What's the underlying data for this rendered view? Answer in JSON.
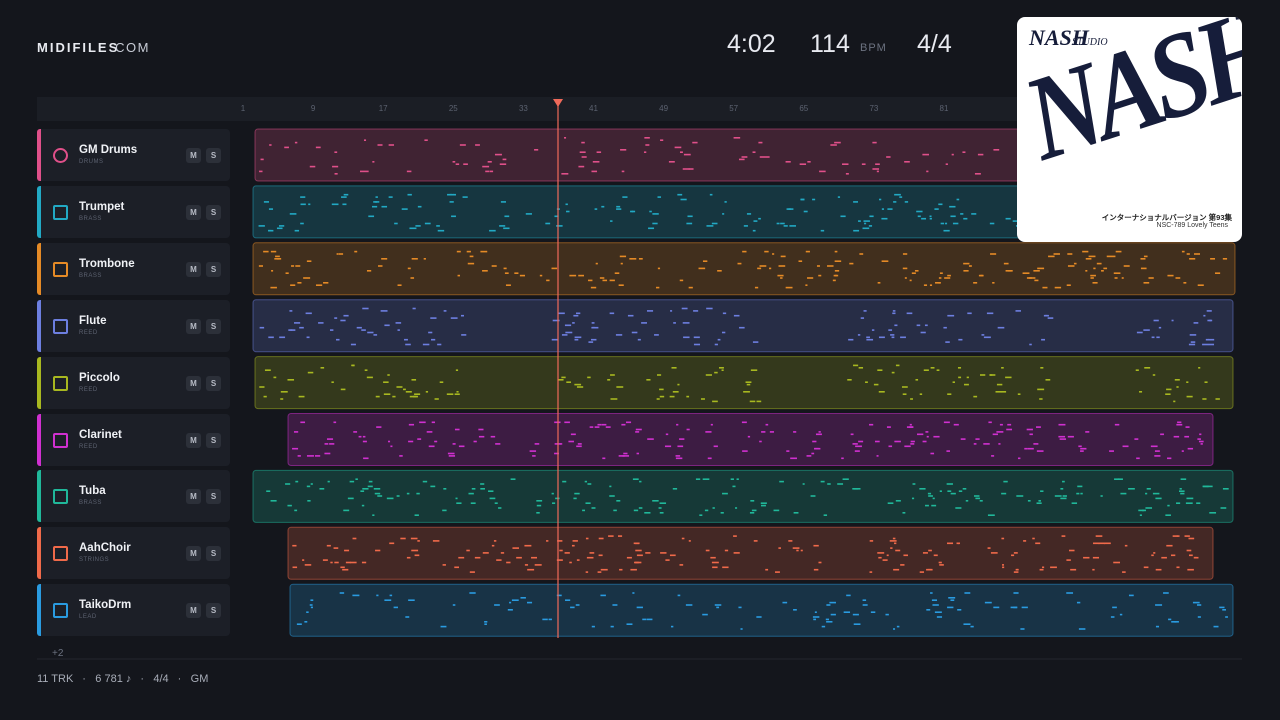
{
  "header": {
    "brand": "MIDIFILES",
    "brand_suffix": ".COM",
    "duration": "4:02",
    "tempo": "114",
    "tempo_unit": "BPM",
    "meter": "4/4"
  },
  "ruler": [
    1,
    9,
    17,
    25,
    33,
    41,
    49,
    57,
    65,
    73,
    81
  ],
  "tracks": [
    {
      "name": "GM Drums",
      "category": "DRUMS",
      "color": "#e0508a",
      "mute": "M",
      "solo": "S"
    },
    {
      "name": "Trumpet",
      "category": "BRASS",
      "color": "#22a9c4",
      "mute": "M",
      "solo": "S"
    },
    {
      "name": "Trombone",
      "category": "BRASS",
      "color": "#e58a26",
      "mute": "M",
      "solo": "S"
    },
    {
      "name": "Flute",
      "category": "REED",
      "color": "#6d7fe0",
      "mute": "M",
      "solo": "S"
    },
    {
      "name": "Piccolo",
      "category": "REED",
      "color": "#a8b820",
      "mute": "M",
      "solo": "S"
    },
    {
      "name": "Clarinet",
      "category": "REED",
      "color": "#d030d0",
      "mute": "M",
      "solo": "S"
    },
    {
      "name": "Tuba",
      "category": "BRASS",
      "color": "#20b89a",
      "mute": "M",
      "solo": "S"
    },
    {
      "name": "AahChoir",
      "category": "STRINGS",
      "color": "#f06a4a",
      "mute": "M",
      "solo": "S"
    },
    {
      "name": "TaikoDrm",
      "category": "LEAD",
      "color": "#2a9be0",
      "mute": "M",
      "solo": "S"
    }
  ],
  "more_tracks": "+2",
  "footer": {
    "items": [
      "11 TRK",
      "6 781 ♪",
      "4/4",
      "GM"
    ],
    "separator": "·"
  },
  "album": {
    "logo": "NASH",
    "logo_sub": "STUDIO",
    "art_text": "NASH",
    "subtitle": "インターナショナルバージョン 第93集",
    "code": "NSC-789  Lovely Teens"
  }
}
